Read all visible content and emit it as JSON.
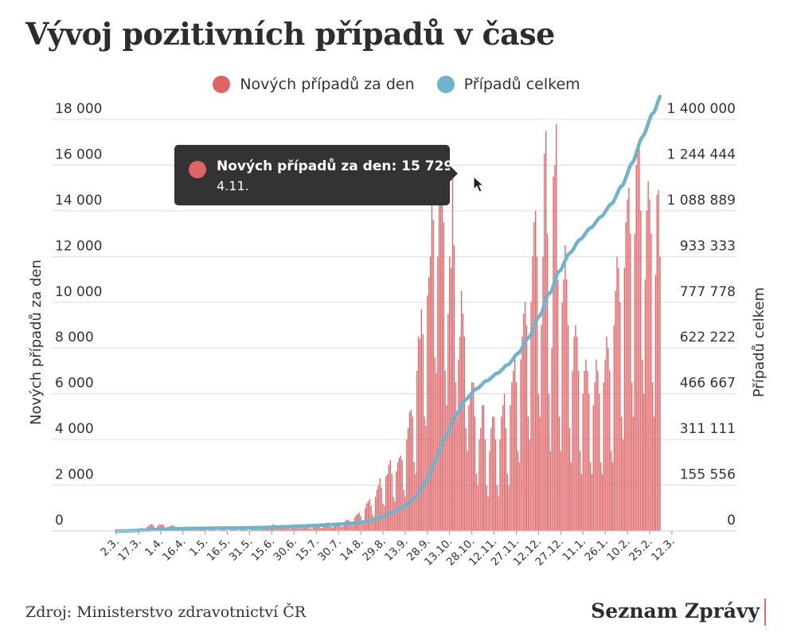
{
  "title": "Vývoj pozitivních případů v čase",
  "legend": {
    "daily_label": "Nových případů za den",
    "total_label": "Případů celkem"
  },
  "colors": {
    "daily": "#e06366",
    "total": "#72b3cc",
    "grid": "#ecd6da",
    "tooltip_bg": "#333333"
  },
  "tooltip": {
    "text": "Nových případů za den: 15 729",
    "date": "4.11."
  },
  "source": "Zdroj: Ministerstvo zdravotnictví ČR",
  "brand": "Seznam Zprávy",
  "chart_data": {
    "type": "bar",
    "title": "Vývoj pozitivních případů v čase",
    "ylabel": "Nových případů za den",
    "y2label": "Případů celkem",
    "ylim": [
      0,
      18000
    ],
    "y2lim": [
      0,
      1400000
    ],
    "yticks": [
      "0",
      "2 000",
      "4 000",
      "6 000",
      "8 000",
      "10 000",
      "12 000",
      "14 000",
      "16 000",
      "18 000"
    ],
    "y2ticks": [
      "0",
      "155 556",
      "311 111",
      "466 667",
      "622 222",
      "777 778",
      "933 333",
      "1 088 889",
      "1 244 444",
      "1 400 000"
    ],
    "xticks": [
      "2.3.",
      "17.3.",
      "1.4.",
      "16.4.",
      "1.5.",
      "16.5.",
      "31.5.",
      "15.6.",
      "30.6.",
      "15.7.",
      "30.7.",
      "14.8.",
      "29.8.",
      "13.9.",
      "28.9.",
      "13.10.",
      "28.10.",
      "12.11.",
      "27.11.",
      "12.12.",
      "27.12.",
      "11.1.",
      "26.1.",
      "10.2.",
      "25.2.",
      "12.3."
    ],
    "x_start": "2.3.",
    "x_end": "14.3.",
    "legend_position": "top",
    "grid": true,
    "daily_weekly": [
      [
        3,
        3,
        5,
        7,
        4,
        2,
        2
      ],
      [
        10,
        15,
        20,
        30,
        30,
        25,
        20
      ],
      [
        70,
        90,
        110,
        130,
        120,
        100,
        80
      ],
      [
        180,
        250,
        280,
        300,
        260,
        150,
        120
      ],
      [
        220,
        300,
        290,
        280,
        250,
        120,
        100
      ],
      [
        180,
        200,
        230,
        250,
        220,
        100,
        80
      ],
      [
        100,
        110,
        140,
        130,
        120,
        60,
        50
      ],
      [
        80,
        90,
        90,
        90,
        80,
        30,
        30
      ],
      [
        50,
        70,
        80,
        75,
        60,
        20,
        20
      ],
      [
        40,
        60,
        70,
        50,
        40,
        20,
        20
      ],
      [
        40,
        60,
        50,
        60,
        40,
        20,
        20
      ],
      [
        50,
        80,
        60,
        60,
        50,
        25,
        30
      ],
      [
        80,
        80,
        90,
        80,
        60,
        30,
        30
      ],
      [
        90,
        100,
        110,
        120,
        100,
        60,
        50
      ],
      [
        120,
        150,
        200,
        140,
        180,
        100,
        100
      ],
      [
        200,
        300,
        260,
        250,
        200,
        100,
        150
      ],
      [
        180,
        200,
        210,
        230,
        180,
        90,
        100
      ],
      [
        230,
        240,
        250,
        280,
        200,
        120,
        110
      ],
      [
        220,
        250,
        230,
        240,
        200,
        110,
        90
      ],
      [
        270,
        300,
        280,
        300,
        250,
        140,
        120
      ],
      [
        320,
        350,
        340,
        380,
        300,
        170,
        150
      ],
      [
        300,
        320,
        380,
        350,
        330,
        180,
        200
      ],
      [
        400,
        460,
        500,
        450,
        420,
        250,
        250
      ],
      [
        600,
        700,
        750,
        800,
        650,
        450,
        400
      ],
      [
        1000,
        1200,
        1300,
        1400,
        1100,
        700,
        600
      ],
      [
        1500,
        1800,
        2000,
        2300,
        1900,
        1200,
        1100
      ],
      [
        2400,
        2500,
        2900,
        3100,
        2500,
        1500,
        1300
      ],
      [
        2600,
        3000,
        3200,
        3300,
        3100,
        1800,
        1500
      ],
      [
        4000,
        4500,
        5200,
        5300,
        5000,
        3000,
        2500
      ],
      [
        7000,
        8500,
        8400,
        9700,
        8600,
        5000,
        4600
      ],
      [
        10300,
        11100,
        12000,
        14900,
        13600,
        7600,
        6900
      ],
      [
        12000,
        15100,
        15700,
        15200,
        13500,
        7000,
        5500
      ],
      [
        9500,
        12000,
        11500,
        15729,
        12500,
        6500,
        5000
      ],
      [
        7500,
        8500,
        10500,
        9500,
        8500,
        4500,
        3500
      ],
      [
        5500,
        6000,
        6500,
        6500,
        5000,
        2500,
        2000
      ],
      [
        4000,
        4500,
        5500,
        5500,
        4000,
        2000,
        1500
      ],
      [
        3500,
        4500,
        5000,
        5000,
        4000,
        2000,
        1500
      ],
      [
        4000,
        5000,
        5500,
        6000,
        4500,
        2500,
        2000
      ],
      [
        5500,
        6500,
        7000,
        7500,
        6500,
        3500,
        3000
      ],
      [
        7500,
        8500,
        9500,
        10000,
        9000,
        5000,
        4000
      ],
      [
        10000,
        12000,
        13500,
        14000,
        12000,
        6000,
        5000
      ],
      [
        9000,
        12000,
        16500,
        17500,
        13000,
        6000,
        3500
      ],
      [
        8000,
        15500,
        16000,
        17800,
        11000,
        5000,
        3500
      ],
      [
        10000,
        11000,
        12500,
        11000,
        9000,
        4500,
        3000
      ],
      [
        7000,
        8500,
        9000,
        8500,
        7000,
        3500,
        2500
      ],
      [
        6000,
        7000,
        7500,
        7000,
        6000,
        3000,
        2500
      ],
      [
        5500,
        6500,
        7500,
        7000,
        6000,
        3000,
        2500
      ],
      [
        6500,
        7500,
        8500,
        8000,
        7000,
        3500,
        3000
      ],
      [
        9000,
        10500,
        12000,
        11500,
        10000,
        5000,
        4000
      ],
      [
        11500,
        13500,
        14500,
        15000,
        13000,
        6500,
        5000
      ],
      [
        13000,
        16000,
        16500,
        16700,
        14000,
        7500,
        6000
      ],
      [
        11000,
        14000,
        15300,
        14500,
        13000,
        6500,
        5000
      ],
      [
        11200,
        14700,
        14900,
        12000
      ]
    ],
    "total_weekly": [
      [
        0,
        0,
        0,
        0,
        0,
        0,
        0
      ],
      [
        300,
        400,
        600,
        800,
        1000,
        1200,
        1300
      ],
      [
        1600,
        1900,
        2200,
        2400,
        2600,
        2800,
        3000
      ],
      [
        3400,
        3700,
        3900,
        4100,
        4400,
        4600,
        4800
      ],
      [
        5100,
        5400,
        5700,
        6000,
        6200,
        6300,
        6400
      ],
      [
        6600,
        6800,
        7000,
        7200,
        7400,
        7500,
        7600
      ],
      [
        7700,
        7800,
        7900,
        8100,
        8200,
        8300,
        8300
      ],
      [
        8400,
        8500,
        8600,
        8600,
        8700,
        8800,
        8800
      ],
      [
        8900,
        9000,
        9000,
        9100,
        9200,
        9200,
        9300
      ],
      [
        9300,
        9400,
        9500,
        9500,
        9600,
        9600,
        9600
      ],
      [
        9700,
        9800,
        9800,
        9900,
        9900,
        9900,
        10000
      ],
      [
        10000,
        10100,
        10200,
        10200,
        10300,
        10300,
        10300
      ],
      [
        10400,
        10500,
        10600,
        10700,
        10800,
        10800,
        10800
      ],
      [
        10900,
        11000,
        11100,
        11200,
        11300,
        11400,
        11400
      ],
      [
        11600,
        11700,
        11900,
        12000,
        12200,
        12300,
        12400
      ],
      [
        12600,
        12900,
        13200,
        13400,
        13600,
        13700,
        13900
      ],
      [
        14100,
        14300,
        14500,
        14700,
        14900,
        15000,
        15100
      ],
      [
        15400,
        15600,
        15900,
        16100,
        16300,
        16400,
        16500
      ],
      [
        16700,
        16900,
        17100,
        17400,
        17600,
        17700,
        17800
      ],
      [
        18100,
        18400,
        18700,
        19000,
        19200,
        19400,
        19500
      ],
      [
        19800,
        20100,
        20500,
        20900,
        21200,
        21300,
        21500
      ],
      [
        21800,
        22100,
        22500,
        22900,
        23200,
        23400,
        23600
      ],
      [
        24000,
        24500,
        25000,
        25400,
        25800,
        26100,
        26300
      ],
      [
        26900,
        27600,
        28400,
        29200,
        29800,
        30300,
        30700
      ],
      [
        31700,
        32900,
        34200,
        35600,
        36700,
        37400,
        38000
      ],
      [
        39500,
        41300,
        43300,
        45600,
        47500,
        48700,
        49800
      ],
      [
        52200,
        54700,
        57600,
        60700,
        63200,
        64700,
        66000
      ],
      [
        68600,
        71600,
        74800,
        78100,
        81200,
        83000,
        84500
      ],
      [
        88500,
        93000,
        98200,
        103500,
        108500,
        111500,
        114000
      ],
      [
        121000,
        129500,
        137900,
        147600,
        156200,
        161200,
        165800
      ],
      [
        176100,
        187200,
        199200,
        214100,
        227700,
        235300,
        242200
      ],
      [
        254200,
        269300,
        285000,
        300200,
        313700,
        320700,
        326200
      ],
      [
        335700,
        347700,
        359200,
        374900,
        387400,
        393900,
        398900
      ],
      [
        406400,
        414900,
        425400,
        434900,
        443400,
        447900,
        451400
      ],
      [
        456900,
        462900,
        469400,
        475900,
        480900,
        483400,
        485400
      ],
      [
        489400,
        493900,
        499400,
        504900,
        508900,
        510900,
        512400
      ],
      [
        515900,
        520400,
        525400,
        530400,
        534400,
        536400,
        537900
      ],
      [
        541900,
        546900,
        552400,
        558400,
        562900,
        565400,
        567400
      ],
      [
        572900,
        579400,
        586400,
        593900,
        600400,
        603900,
        606900
      ],
      [
        614400,
        622900,
        632400,
        642400,
        651400,
        656400,
        660400
      ],
      [
        670400,
        682400,
        695900,
        709900,
        721900,
        727900,
        732900
      ],
      [
        741900,
        753900,
        770400,
        787900,
        800900,
        806900,
        810400
      ],
      [
        818400,
        833900,
        849900,
        867700,
        878700,
        883700,
        887200
      ],
      [
        897200,
        908200,
        920700,
        931700,
        940700,
        945200,
        948200
      ],
      [
        955200,
        963700,
        972700,
        981200,
        988200,
        991700,
        994200
      ],
      [
        1000200,
        1007200,
        1014700,
        1021700,
        1027700,
        1030700,
        1033200
      ],
      [
        1038700,
        1045200,
        1052700,
        1059700,
        1065700,
        1068700,
        1071200
      ],
      [
        1077700,
        1085200,
        1093700,
        1101700,
        1108700,
        1112200,
        1115200
      ],
      [
        1124200,
        1134700,
        1146700,
        1158200,
        1168200,
        1173200,
        1177200
      ],
      [
        1188700,
        1202200,
        1216700,
        1231700,
        1244700,
        1251200,
        1256200
      ],
      [
        1269200,
        1285200,
        1301700,
        1318400,
        1332400,
        1339900,
        1345900
      ],
      [
        1356900,
        1370900,
        1386200,
        1400700,
        1413700,
        1420200,
        1425200
      ],
      [
        1436400,
        1451100,
        1466000,
        1478000
      ]
    ]
  }
}
